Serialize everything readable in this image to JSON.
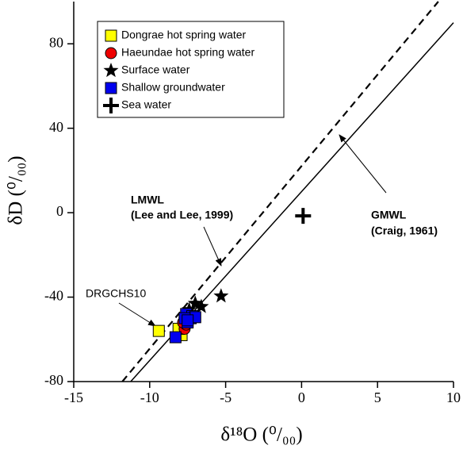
{
  "chart_data": {
    "type": "scatter",
    "xlabel": "δ¹⁸O (⁰/₀₀)",
    "ylabel": "δD (⁰/₀₀)",
    "xlim": [
      -15,
      10
    ],
    "ylim": [
      -80,
      100
    ],
    "xticks": [
      -15,
      -10,
      -5,
      0,
      5,
      10
    ],
    "yticks": [
      -80,
      -40,
      0,
      40,
      80
    ],
    "series": [
      {
        "name": "Dongrae hot spring water",
        "marker": "square",
        "color": "#ffff00",
        "x": [
          -9.4,
          -8.0,
          -7.9,
          -7.7,
          -8.1
        ],
        "values": [
          -56,
          -57,
          -58,
          -52,
          -55
        ]
      },
      {
        "name": "Haeundae hot spring water",
        "marker": "circle",
        "color": "#ee0000",
        "x": [
          -7.7,
          -7.6,
          -7.8
        ],
        "values": [
          -55,
          -53,
          -52
        ]
      },
      {
        "name": "Surface water",
        "marker": "star",
        "color": "#000000",
        "x": [
          -5.3,
          -6.6,
          -7.0,
          -7.4
        ],
        "values": [
          -39.5,
          -44.5,
          -43,
          -46
        ]
      },
      {
        "name": "Shallow groundwater",
        "marker": "square",
        "color": "#0000ee",
        "x": [
          -8.3,
          -7.5,
          -7.3,
          -7.6,
          -7.2,
          -7.0,
          -7.7,
          -7.5
        ],
        "values": [
          -59,
          -52,
          -50,
          -48,
          -49,
          -49.5,
          -50,
          -51
        ]
      },
      {
        "name": "Sea water",
        "marker": "plus",
        "color": "#000000",
        "x": [
          0.1
        ],
        "values": [
          -1.5
        ]
      }
    ],
    "lines": [
      {
        "style": "dashed",
        "color": "#000000",
        "x": [
          -11.8,
          9.0
        ],
        "values": [
          -80,
          100
        ]
      },
      {
        "style": "solid",
        "color": "#000000",
        "x": [
          -11.25,
          10
        ],
        "values": [
          -80,
          90
        ]
      }
    ],
    "annotations": [
      "LMWL",
      "(Lee and Lee, 1999)",
      "GMWL",
      "(Craig, 1961)",
      "DRGCHS10"
    ]
  }
}
